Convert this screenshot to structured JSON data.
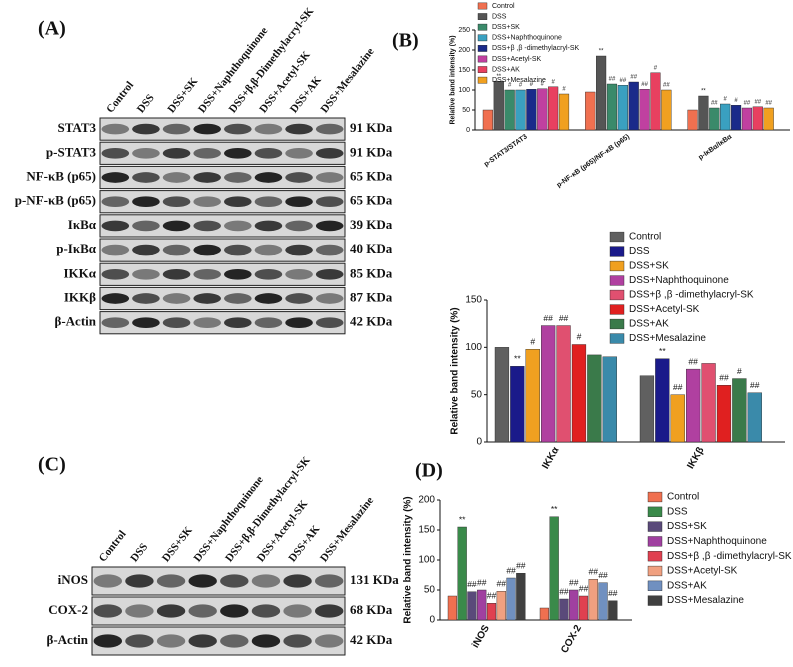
{
  "panel_a": {
    "label": "(A)",
    "lanes": [
      "Control",
      "DSS",
      "DSS+SK",
      "DSS+Naphthoquinone",
      "DSS+β,β-Dimethylacryl-SK",
      "DSS+Acetyl-SK",
      "DSS+AK",
      "DSS+Mesalazine"
    ],
    "rows": [
      {
        "protein": "STAT3",
        "size": "91 KDa"
      },
      {
        "protein": "p-STAT3",
        "size": "91 KDa"
      },
      {
        "protein": "NF-κB (p65)",
        "size": "65 KDa"
      },
      {
        "protein": "p-NF-κB (p65)",
        "size": "65 KDa"
      },
      {
        "protein": "IκBα",
        "size": "39 KDa"
      },
      {
        "protein": "p-IκBα",
        "size": "40 KDa"
      },
      {
        "protein": "IKKα",
        "size": "85 KDa"
      },
      {
        "protein": "IKKβ",
        "size": "87 KDa"
      },
      {
        "protein": "β-Actin",
        "size": "42 KDa"
      }
    ]
  },
  "panel_b_label": "(B)",
  "panel_c": {
    "label": "(C)",
    "lanes": [
      "Control",
      "DSS",
      "DSS+SK",
      "DSS+Naphthoquinone",
      "DSS+β,β-Dimethylacryl-SK",
      "DSS+Acetyl-SK",
      "DSS+AK",
      "DSS+Mesalazine"
    ],
    "rows": [
      {
        "protein": "iNOS",
        "size": "131 KDa"
      },
      {
        "protein": "COX-2",
        "size": "68 KDa"
      },
      {
        "protein": "β-Actin",
        "size": "42 KDa"
      }
    ]
  },
  "panel_d_label": "(D)",
  "chart_data": [
    {
      "type": "bar",
      "y_label": "Relative band intensity (%)",
      "categories": [
        "p-STAT3/STAT3",
        "p-NF-κB (p65)/NF-κB (p65)",
        "p-IκBα/IκBα"
      ],
      "ylim": [
        0,
        250
      ],
      "yticks": [
        0,
        50,
        100,
        150,
        200,
        250
      ],
      "series": [
        {
          "name": "Control",
          "color": "#f07050",
          "values": [
            50,
            95,
            50
          ],
          "significance": [
            null,
            null,
            null
          ]
        },
        {
          "name": "DSS",
          "color": "#555555",
          "values": [
            122,
            185,
            85
          ],
          "significance": [
            "**",
            "**",
            "**"
          ]
        },
        {
          "name": "DSS+SK",
          "color": "#3a8a6a",
          "values": [
            100,
            115,
            55
          ],
          "significance": [
            "#",
            "##",
            "##"
          ]
        },
        {
          "name": "DSS+Naphthoquinone",
          "color": "#3aa0c0",
          "values": [
            100,
            112,
            65
          ],
          "significance": [
            "#",
            "##",
            "#"
          ]
        },
        {
          "name": "DSS+β ,β -dimethylacryl-SK",
          "color": "#1a2a8a",
          "values": [
            102,
            120,
            62
          ],
          "significance": [
            "#",
            "##",
            "#"
          ]
        },
        {
          "name": "DSS+Acetyl-SK",
          "color": "#c040a0",
          "values": [
            103,
            102,
            55
          ],
          "significance": [
            "#",
            "##",
            "##"
          ]
        },
        {
          "name": "DSS+AK",
          "color": "#e84060",
          "values": [
            108,
            143,
            58
          ],
          "significance": [
            "#",
            "#",
            "##"
          ]
        },
        {
          "name": "DSS+Mesalazine",
          "color": "#f0a020",
          "values": [
            90,
            100,
            55
          ],
          "significance": [
            "#",
            "##",
            "##"
          ]
        }
      ]
    },
    {
      "type": "bar",
      "y_label": "Relative band intensity (%)",
      "categories": [
        "IKKα",
        "IKKβ"
      ],
      "ylim": [
        0,
        150
      ],
      "yticks": [
        0,
        50,
        100,
        150
      ],
      "series": [
        {
          "name": "Control",
          "color": "#606060",
          "values": [
            100,
            70
          ],
          "significance": [
            null,
            null
          ]
        },
        {
          "name": "DSS",
          "color": "#1a1a8a",
          "values": [
            80,
            88
          ],
          "significance": [
            "**",
            "**"
          ]
        },
        {
          "name": "DSS+SK",
          "color": "#f0a020",
          "values": [
            98,
            50
          ],
          "significance": [
            "#",
            "##"
          ]
        },
        {
          "name": "DSS+Naphthoquinone",
          "color": "#b040a0",
          "values": [
            123,
            77
          ],
          "significance": [
            "##",
            "##"
          ]
        },
        {
          "name": "DSS+β ,β -dimethylacryl-SK",
          "color": "#e05070",
          "values": [
            123,
            83
          ],
          "significance": [
            "##",
            null
          ]
        },
        {
          "name": "DSS+Acetyl-SK",
          "color": "#e02020",
          "values": [
            103,
            60
          ],
          "significance": [
            "#",
            "##"
          ]
        },
        {
          "name": "DSS+AK",
          "color": "#3a7a4a",
          "values": [
            92,
            67
          ],
          "significance": [
            null,
            "#"
          ]
        },
        {
          "name": "DSS+Mesalazine",
          "color": "#3a8aaa",
          "values": [
            90,
            52
          ],
          "significance": [
            null,
            "##"
          ]
        }
      ]
    },
    {
      "type": "bar",
      "y_label": "Relative band intensity (%)",
      "categories": [
        "iNOS",
        "COX-2"
      ],
      "ylim": [
        0,
        200
      ],
      "yticks": [
        0,
        50,
        100,
        150,
        200
      ],
      "series": [
        {
          "name": "Control",
          "color": "#f07050",
          "values": [
            40,
            20
          ],
          "significance": [
            null,
            null
          ]
        },
        {
          "name": "DSS",
          "color": "#3a8a4a",
          "values": [
            155,
            172
          ],
          "significance": [
            "**",
            "**"
          ]
        },
        {
          "name": "DSS+SK",
          "color": "#5a4a7a",
          "values": [
            47,
            35
          ],
          "significance": [
            "##",
            "##"
          ]
        },
        {
          "name": "DSS+Naphthoquinone",
          "color": "#a040a0",
          "values": [
            50,
            50
          ],
          "significance": [
            "##",
            "##"
          ]
        },
        {
          "name": "DSS+β ,β -dimethylacryl-SK",
          "color": "#e04050",
          "values": [
            28,
            40
          ],
          "significance": [
            "##",
            "##"
          ]
        },
        {
          "name": "DSS+Acetyl-SK",
          "color": "#f0a080",
          "values": [
            48,
            68
          ],
          "significance": [
            "##",
            "##"
          ]
        },
        {
          "name": "DSS+AK",
          "color": "#7090c0",
          "values": [
            70,
            62
          ],
          "significance": [
            "##",
            "##"
          ]
        },
        {
          "name": "DSS+Mesalazine",
          "color": "#404040",
          "values": [
            78,
            32
          ],
          "significance": [
            "##",
            "##"
          ]
        }
      ]
    }
  ]
}
